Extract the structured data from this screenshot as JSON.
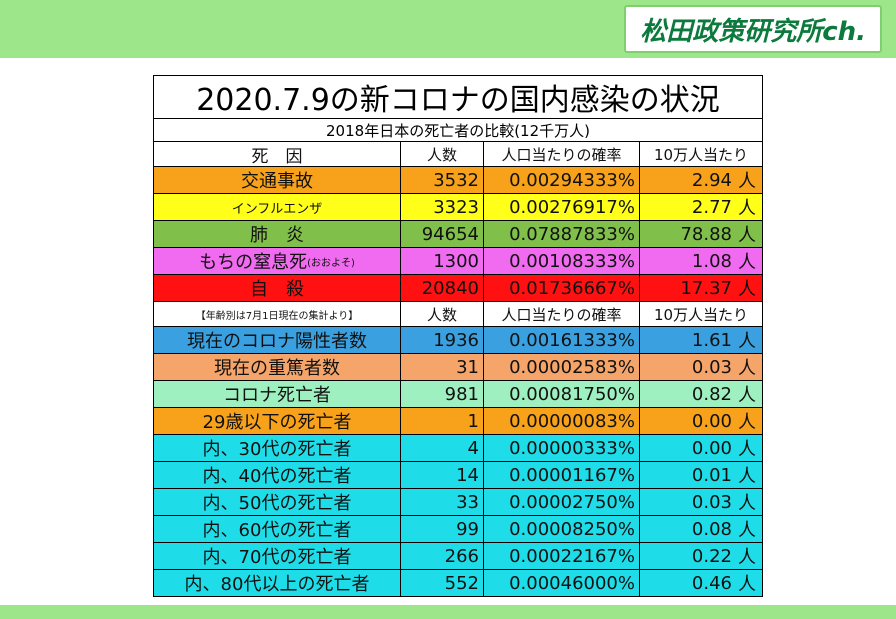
{
  "channel": "松田政策研究所ch.",
  "title": "2020.7.9の新コロナの国内感染の状況",
  "subtitle": "2018年日本の死亡者の比較(12千万人)",
  "header1": {
    "cause": "死　因",
    "count": "人数",
    "rate": "人口当たりの確率",
    "per100k": "10万人当たり"
  },
  "section1": [
    {
      "cause": "交通事故",
      "count": "3532",
      "rate": "0.00294333%",
      "per100k": "2.94",
      "color": "#f7a21a"
    },
    {
      "cause": "インフルエンザ",
      "count": "3323",
      "rate": "0.00276917%",
      "per100k": "2.77",
      "color": "#ffff1a"
    },
    {
      "cause": "肺　炎",
      "count": "94654",
      "rate": "0.07887833%",
      "per100k": "78.88",
      "color": "#7fbf4a"
    },
    {
      "cause": "もちの窒息死",
      "cause_note": "(おおよそ)",
      "count": "1300",
      "rate": "0.00108333%",
      "per100k": "1.08",
      "color": "#f06bf0"
    },
    {
      "cause": "自　殺",
      "count": "20840",
      "rate": "0.01736667%",
      "per100k": "17.37",
      "color": "#ff1111"
    }
  ],
  "header2": {
    "note": "【年齢別は7月1日現在の集計より】",
    "count": "人数",
    "rate": "人口当たりの確率",
    "per100k": "10万人当たり"
  },
  "section2": [
    {
      "cause": "現在のコロナ陽性者数",
      "count": "1936",
      "rate": "0.00161333%",
      "per100k": "1.61",
      "color": "#3aa0e0"
    },
    {
      "cause": "現在の重篤者数",
      "count": "31",
      "rate": "0.00002583%",
      "per100k": "0.03",
      "color": "#f5a56a"
    },
    {
      "cause": "コロナ死亡者",
      "count": "981",
      "rate": "0.00081750%",
      "per100k": "0.82",
      "color": "#9ef0c0"
    },
    {
      "cause": "29歳以下の死亡者",
      "count": "1",
      "rate": "0.00000083%",
      "per100k": "0.00",
      "color": "#f7a21a"
    },
    {
      "cause": "内、30代の死亡者",
      "count": "4",
      "rate": "0.00000333%",
      "per100k": "0.00",
      "color": "#1fdde8"
    },
    {
      "cause": "内、40代の死亡者",
      "count": "14",
      "rate": "0.00001167%",
      "per100k": "0.01",
      "color": "#1fdde8"
    },
    {
      "cause": "内、50代の死亡者",
      "count": "33",
      "rate": "0.00002750%",
      "per100k": "0.03",
      "color": "#1fdde8"
    },
    {
      "cause": "内、60代の死亡者",
      "count": "99",
      "rate": "0.00008250%",
      "per100k": "0.08",
      "color": "#1fdde8"
    },
    {
      "cause": "内、70代の死亡者",
      "count": "266",
      "rate": "0.00022167%",
      "per100k": "0.22",
      "color": "#1fdde8"
    },
    {
      "cause": "内、80代以上の死亡者",
      "count": "552",
      "rate": "0.00046000%",
      "per100k": "0.46",
      "color": "#1fdde8"
    }
  ],
  "unit": "人"
}
